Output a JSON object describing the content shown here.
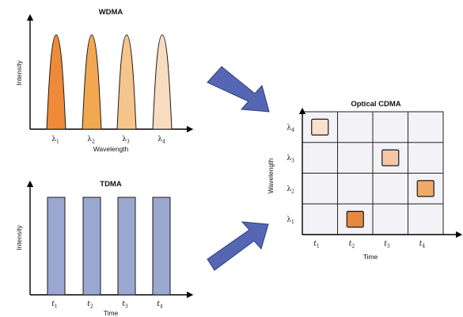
{
  "wdma": {
    "title": "WDMA",
    "y_label": "Intensity",
    "x_label": "Wavelength",
    "peaks": [
      {
        "sym": "λ",
        "sub": "1",
        "color": "#ee8a3a"
      },
      {
        "sym": "λ",
        "sub": "2",
        "color": "#f2a751"
      },
      {
        "sym": "λ",
        "sub": "3",
        "color": "#f6c58c"
      },
      {
        "sym": "λ",
        "sub": "4",
        "color": "#f9dcc0"
      }
    ]
  },
  "tdma": {
    "title": "TDMA",
    "y_label": "Intensity",
    "x_label": "Time",
    "bar_color": "#9aa7d0",
    "slots": [
      {
        "sym": "t",
        "sub": "1"
      },
      {
        "sym": "t",
        "sub": "2"
      },
      {
        "sym": "t",
        "sub": "3"
      },
      {
        "sym": "t",
        "sub": "4"
      }
    ]
  },
  "cdma": {
    "title": "Optical CDMA",
    "y_label": "Wavelength",
    "x_label": "Time",
    "rows": [
      {
        "sym": "λ",
        "sub": "4"
      },
      {
        "sym": "λ",
        "sub": "3"
      },
      {
        "sym": "λ",
        "sub": "2"
      },
      {
        "sym": "λ",
        "sub": "1"
      }
    ],
    "cols": [
      {
        "sym": "t",
        "sub": "1"
      },
      {
        "sym": "t",
        "sub": "2"
      },
      {
        "sym": "t",
        "sub": "3"
      },
      {
        "sym": "t",
        "sub": "4"
      }
    ],
    "chips": [
      {
        "time": 1,
        "wavelength": 4,
        "color": "#fae1cf"
      },
      {
        "time": 3,
        "wavelength": 3,
        "color": "#f6c7a7"
      },
      {
        "time": 4,
        "wavelength": 2,
        "color": "#f2aa6b"
      },
      {
        "time": 2,
        "wavelength": 1,
        "color": "#e5893f"
      }
    ]
  },
  "colors": {
    "arrow_fill": "#5566b3",
    "arrow_stroke": "#2e3d80",
    "grid_background": "#f3f3f7",
    "grid_line": "#222222"
  }
}
